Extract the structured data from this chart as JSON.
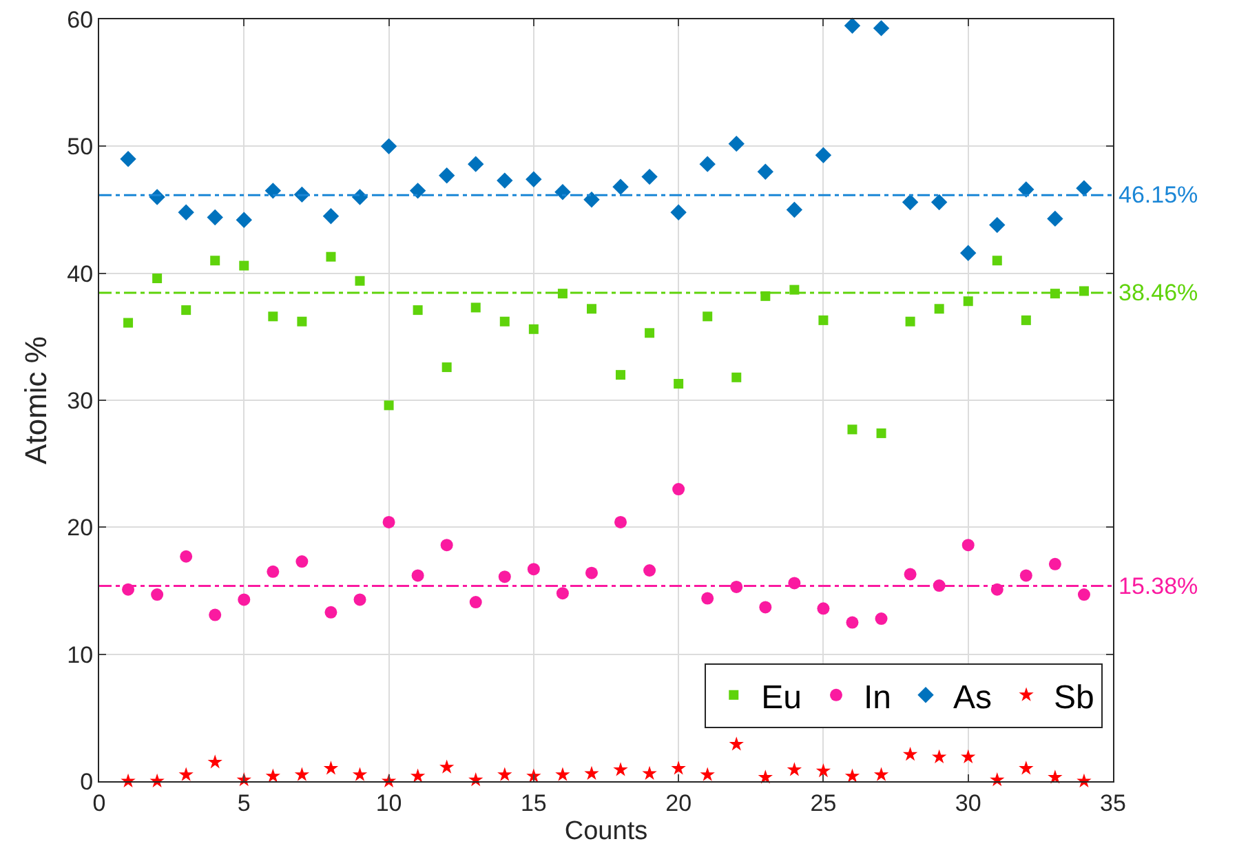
{
  "chart_data": {
    "type": "scatter",
    "xlabel": "Counts",
    "ylabel": "Atomic %",
    "x": [
      1,
      2,
      3,
      4,
      5,
      6,
      7,
      8,
      9,
      10,
      11,
      12,
      13,
      14,
      15,
      16,
      17,
      18,
      19,
      20,
      21,
      22,
      23,
      24,
      25,
      26,
      27,
      28,
      29,
      30,
      31,
      32,
      33,
      34
    ],
    "series": [
      {
        "name": "Eu",
        "color": "#5fd30b",
        "marker": "square",
        "values": [
          36.1,
          39.6,
          37.1,
          41,
          40.6,
          36.6,
          36.2,
          41.3,
          39.4,
          29.6,
          37.1,
          32.6,
          37.3,
          36.2,
          35.6,
          38.4,
          37.2,
          32,
          35.3,
          31.3,
          36.6,
          31.8,
          38.2,
          38.7,
          36.3,
          27.7,
          27.4,
          36.2,
          37.2,
          37.8,
          41,
          36.3,
          38.4,
          38.6
        ]
      },
      {
        "name": "In",
        "color": "#fa1aa0",
        "marker": "circle",
        "values": [
          15.1,
          14.7,
          17.7,
          13.1,
          14.3,
          16.5,
          17.3,
          13.3,
          14.3,
          20.4,
          16.2,
          18.6,
          14.1,
          16.1,
          16.7,
          14.8,
          16.4,
          20.4,
          16.6,
          23,
          14.4,
          15.3,
          13.7,
          15.6,
          13.6,
          12.5,
          12.8,
          16.3,
          15.4,
          18.6,
          15.1,
          16.2,
          17.1,
          14.7
        ]
      },
      {
        "name": "As",
        "color": "#0072bd",
        "marker": "diamond",
        "values": [
          49,
          46,
          44.8,
          44.4,
          44.2,
          46.5,
          46.2,
          44.5,
          46,
          50,
          46.5,
          47.7,
          48.6,
          47.3,
          47.4,
          46.4,
          45.8,
          46.8,
          47.6,
          44.8,
          48.6,
          50.2,
          48,
          45,
          49.3,
          59.5,
          59.3,
          45.6,
          45.6,
          41.6,
          43.8,
          46.6,
          44.3,
          46.7
        ]
      },
      {
        "name": "Sb",
        "color": "#ff0000",
        "marker": "star",
        "values": [
          0,
          0,
          0.5,
          1.5,
          0.1,
          0.4,
          0.5,
          1,
          0.5,
          0,
          0.4,
          1.1,
          0.1,
          0.5,
          0.4,
          0.5,
          0.6,
          0.9,
          0.6,
          1,
          0.5,
          2.9,
          0.3,
          0.9,
          0.8,
          0.4,
          0.5,
          2.1,
          1.9,
          1.9,
          0.1,
          1,
          0.3,
          0
        ]
      }
    ],
    "ref_lines": [
      {
        "axis": "y",
        "value": 46.15,
        "label": "46.15%",
        "color": "#1a86d6",
        "line_style": "dashed"
      },
      {
        "axis": "y",
        "value": 38.46,
        "label": "38.46%",
        "color": "#5fd30b",
        "line_style": "dashed"
      },
      {
        "axis": "y",
        "value": 15.38,
        "label": "15.38%",
        "color": "#fa1aa0",
        "line_style": "dashed"
      }
    ],
    "xlim": [
      0,
      35
    ],
    "xticks": [
      0,
      5,
      10,
      15,
      20,
      25,
      30,
      35
    ],
    "ylim": [
      0,
      60
    ],
    "yticks": [
      0,
      10,
      20,
      30,
      40,
      50,
      60
    ],
    "grid": true,
    "legend": "bottom right"
  }
}
